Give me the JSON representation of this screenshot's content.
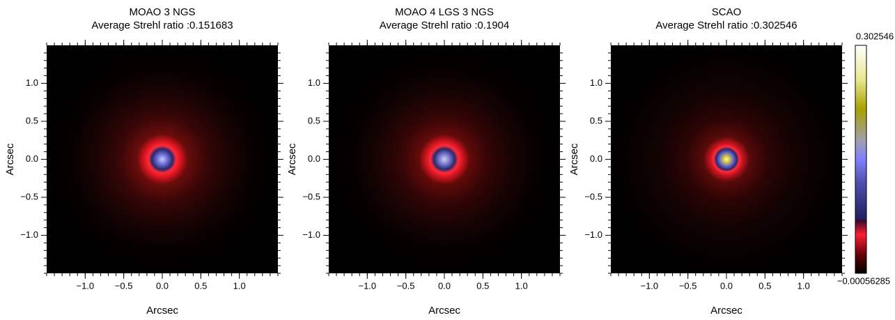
{
  "chart_data": [
    {
      "type": "heatmap",
      "title": "MOAO 3 NGS",
      "subtitle": "Average Strehl ratio :0.151683",
      "xlabel": "Arcsec",
      "ylabel": "Arcsec",
      "xlim": [
        -1.5,
        1.5
      ],
      "ylim": [
        -1.5,
        1.5
      ],
      "xticks": [
        {
          "value": -1.0,
          "label": "−1.0"
        },
        {
          "value": -0.5,
          "label": "−0.5"
        },
        {
          "value": 0.0,
          "label": "0.0"
        },
        {
          "value": 0.5,
          "label": "0.5"
        },
        {
          "value": 1.0,
          "label": "1.0"
        }
      ],
      "yticks": [
        {
          "value": -1.0,
          "label": "−1.0"
        },
        {
          "value": -0.5,
          "label": "−0.5"
        },
        {
          "value": 0.0,
          "label": "0.0"
        },
        {
          "value": 0.5,
          "label": "0.5"
        },
        {
          "value": 1.0,
          "label": "1.0"
        }
      ]
    },
    {
      "type": "heatmap",
      "title": "MOAO 4 LGS 3 NGS",
      "subtitle": "Average Strehl ratio :0.1904",
      "xlabel": "Arcsec",
      "ylabel": "Arcsec",
      "xlim": [
        -1.5,
        1.5
      ],
      "ylim": [
        -1.5,
        1.5
      ],
      "xticks": [
        {
          "value": -1.0,
          "label": "−1.0"
        },
        {
          "value": -0.5,
          "label": "−0.5"
        },
        {
          "value": 0.0,
          "label": "0.0"
        },
        {
          "value": 0.5,
          "label": "0.5"
        },
        {
          "value": 1.0,
          "label": "1.0"
        }
      ],
      "yticks": [
        {
          "value": -1.0,
          "label": "−1.0"
        },
        {
          "value": -0.5,
          "label": "−0.5"
        },
        {
          "value": 0.0,
          "label": "0.0"
        },
        {
          "value": 0.5,
          "label": "0.5"
        },
        {
          "value": 1.0,
          "label": "1.0"
        }
      ]
    },
    {
      "type": "heatmap",
      "title": "SCAO",
      "subtitle": "Average Strehl ratio :0.302546",
      "xlabel": "Arcsec",
      "ylabel": "Arcsec",
      "xlim": [
        -1.5,
        1.5
      ],
      "ylim": [
        -1.5,
        1.5
      ],
      "xticks": [
        {
          "value": -1.0,
          "label": "−1.0"
        },
        {
          "value": -0.5,
          "label": "−0.5"
        },
        {
          "value": 0.0,
          "label": "0.0"
        },
        {
          "value": 0.5,
          "label": "0.5"
        },
        {
          "value": 1.0,
          "label": "1.0"
        }
      ],
      "yticks": [
        {
          "value": -1.0,
          "label": "−1.0"
        },
        {
          "value": -0.5,
          "label": "−0.5"
        },
        {
          "value": 0.0,
          "label": "0.0"
        },
        {
          "value": 0.5,
          "label": "0.5"
        },
        {
          "value": 1.0,
          "label": "1.0"
        }
      ],
      "colorbar": {
        "lim": [
          {
            "value": -0.00056285,
            "label": "−0.00056285"
          },
          {
            "value": 0.302546,
            "label": "0.302546"
          }
        ]
      }
    }
  ]
}
